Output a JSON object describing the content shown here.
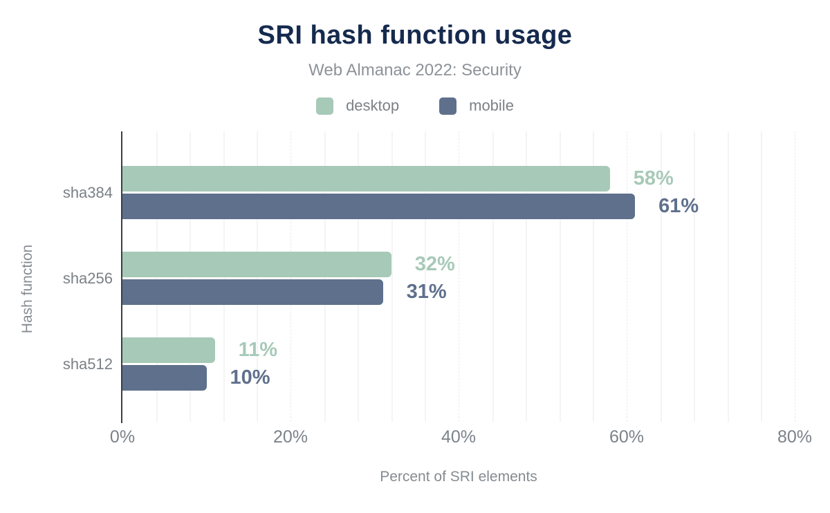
{
  "chart_data": {
    "type": "bar",
    "orientation": "horizontal",
    "title": "SRI hash function usage",
    "subtitle": "Web Almanac 2022: Security",
    "categories": [
      "sha384",
      "sha256",
      "sha512"
    ],
    "series": [
      {
        "name": "desktop",
        "color": "#a7c9b8",
        "values": [
          58,
          32,
          11
        ]
      },
      {
        "name": "mobile",
        "color": "#5f708c",
        "values": [
          61,
          31,
          10
        ]
      }
    ],
    "value_suffix": "%",
    "xlabel": "Percent of SRI elements",
    "ylabel": "Hash function",
    "x_ticks": [
      "0%",
      "20%",
      "40%",
      "60%",
      "80%"
    ],
    "x_tick_values": [
      0,
      20,
      40,
      60,
      80
    ],
    "xlim": [
      0,
      82.7
    ],
    "grid": "vertical minor lines every 4%, dashed at 20% multiples",
    "legend_position": "top-center",
    "colors": {
      "title": "#152a4e",
      "subtitle_text": "#8d9298",
      "axis_text": "#7b8289",
      "axis_line": "#383d46",
      "gridline": "#f4f4f6",
      "background": "#ffffff"
    }
  }
}
